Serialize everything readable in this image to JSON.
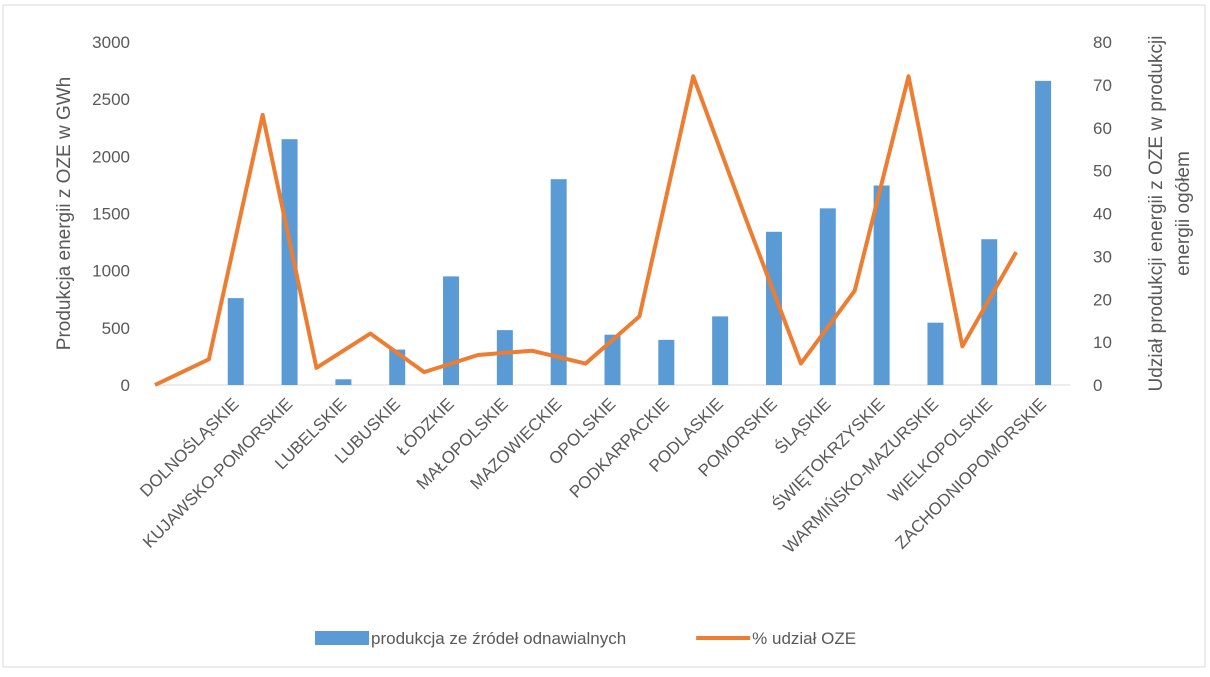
{
  "chart_data": {
    "type": "bar-line",
    "categories": [
      null,
      "DOLNOŚLĄSKIE",
      "KUJAWSKO-POMORSKIE",
      "LUBELSKIE",
      "LUBUSKIE",
      "ŁÓDZKIE",
      "MAŁOPOLSKIE",
      "MAZOWIECKIE",
      "OPOLSKIE",
      "PODKARPACKIE",
      "PODLASKIE",
      "POMORSKIE",
      "ŚLĄSKIE",
      "ŚWIĘTOKRZYSKIE",
      "WARMIŃSKO-MAZURSKIE",
      "WIELKOPOLSKIE",
      "ZACHODNIOPOMORSKIE"
    ],
    "y_label": "Produkcja energii z OZE w GWh",
    "y2_label": [
      "Udział produkcji energii z OZE w produkcji",
      "energii ogółem"
    ],
    "series": [
      {
        "name": "produkcja ze źródeł odnawialnych",
        "type": "bar",
        "color": "#5b9bd5",
        "values": [
          null,
          760,
          2150,
          50,
          310,
          950,
          480,
          1800,
          440,
          395,
          600,
          1340,
          1545,
          1745,
          545,
          1275,
          2660
        ]
      },
      {
        "name": "% udział OZE",
        "type": "line",
        "axis": "y2",
        "color": "#ed7d31",
        "values": [
          0,
          6,
          63,
          4,
          12,
          3,
          7,
          8,
          5,
          16,
          72,
          38,
          5,
          22,
          72,
          9,
          31
        ]
      }
    ],
    "ylim": [
      0,
      3000
    ],
    "yticks": [
      0,
      500,
      1000,
      1500,
      2000,
      2500,
      3000
    ],
    "y2lim": [
      0,
      80
    ],
    "y2ticks": [
      0,
      10,
      20,
      30,
      40,
      50,
      60,
      70,
      80
    ],
    "legend": "bottom"
  }
}
